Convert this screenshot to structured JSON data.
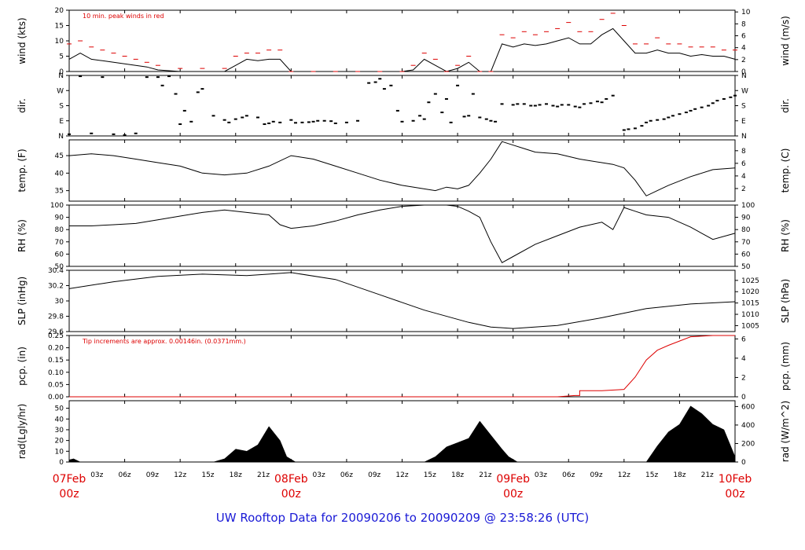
{
  "footer_title": "UW Rooftop Data for 20090206  to  20090209 @ 23:58:26  (UTC)",
  "colors": {
    "red": "#dd0000",
    "blue": "#1a1ad6",
    "black": "#000000"
  },
  "x_axis": {
    "hour_ticks": [
      "03z",
      "06z",
      "09z",
      "12z",
      "15z",
      "18z",
      "21z"
    ],
    "date_labels": [
      {
        "date": "07Feb",
        "hour": "00z",
        "day_index": 0
      },
      {
        "date": "08Feb",
        "hour": "00z",
        "day_index": 1
      },
      {
        "date": "09Feb",
        "hour": "00z",
        "day_index": 2
      },
      {
        "date": "10Feb",
        "hour": "00z",
        "day_index": 3
      }
    ]
  },
  "chart_data": [
    {
      "id": "wind",
      "type": "line",
      "left_label": "wind (kts)",
      "right_label": "wind (m/s)",
      "ylim": [
        0,
        20
      ],
      "yticks_left": [
        0,
        5,
        10,
        15,
        20
      ],
      "right_ylim": [
        0,
        10.29
      ],
      "yticks_right": [
        0,
        2,
        4,
        6,
        8,
        10
      ],
      "annotation": "10 min. peak winds in red",
      "series": [
        {
          "name": "",
          "color": "#000000",
          "x": [
            0,
            0.05,
            0.1,
            0.15,
            0.2,
            0.25,
            0.3,
            0.35,
            0.4,
            0.5,
            0.6,
            0.7,
            0.75,
            0.8,
            0.85,
            0.9,
            0.95,
            1.0,
            1.1,
            1.2,
            1.3,
            1.4,
            1.5,
            1.55,
            1.6,
            1.65,
            1.7,
            1.75,
            1.8,
            1.85,
            1.9,
            1.95,
            2.0,
            2.05,
            2.1,
            2.15,
            2.2,
            2.25,
            2.3,
            2.35,
            2.4,
            2.45,
            2.5,
            2.55,
            2.6,
            2.65,
            2.7,
            2.75,
            2.8,
            2.85,
            2.9,
            2.95,
            3.0
          ],
          "y": [
            4,
            6,
            4,
            3.5,
            3,
            2.5,
            2,
            1.5,
            0.5,
            0,
            0,
            0,
            2,
            4,
            3.5,
            4,
            4,
            0,
            0,
            0,
            0,
            0,
            0,
            0.5,
            4,
            2,
            0,
            1,
            3,
            0,
            0,
            9,
            8,
            9,
            8.5,
            9,
            10,
            11,
            9,
            9,
            12,
            14,
            10,
            6,
            6,
            7,
            6,
            6,
            5,
            5.5,
            5,
            5,
            4
          ]
        },
        {
          "name": "10 min. peak",
          "color": "#dd0000",
          "x": [
            0,
            0.05,
            0.1,
            0.15,
            0.2,
            0.25,
            0.3,
            0.35,
            0.4,
            0.5,
            0.6,
            0.7,
            0.75,
            0.8,
            0.85,
            0.9,
            0.95,
            1.0,
            1.1,
            1.2,
            1.3,
            1.4,
            1.5,
            1.55,
            1.6,
            1.65,
            1.7,
            1.75,
            1.8,
            1.85,
            1.9,
            1.95,
            2.0,
            2.05,
            2.1,
            2.15,
            2.2,
            2.25,
            2.3,
            2.35,
            2.4,
            2.45,
            2.5,
            2.55,
            2.6,
            2.65,
            2.7,
            2.75,
            2.8,
            2.85,
            2.9,
            2.95,
            3.0
          ],
          "y": [
            9,
            10,
            8,
            7,
            6,
            5,
            4,
            3,
            2,
            1,
            1,
            1,
            5,
            6,
            6,
            7,
            7,
            0,
            0,
            0,
            0,
            0,
            0,
            2,
            6,
            4,
            0,
            2,
            5,
            0,
            0,
            12,
            11,
            13,
            12,
            13,
            14,
            16,
            13,
            13,
            17,
            19,
            15,
            9,
            9,
            11,
            9,
            9,
            8,
            8,
            8,
            7,
            7
          ]
        }
      ]
    },
    {
      "id": "dir",
      "type": "scatter",
      "left_label": "dir.",
      "right_label": "dir.",
      "yticks_left": [
        "N",
        "E",
        "S",
        "W",
        "N"
      ],
      "yticks_right": [
        "N",
        "E",
        "S",
        "W",
        "N"
      ],
      "ylim": [
        0,
        360
      ],
      "series": [
        {
          "name": "",
          "color": "#000000",
          "x": [
            0,
            0.1,
            0.2,
            0.3,
            0.35,
            0.4,
            0.45,
            0.5,
            0.55,
            0.6,
            0.7,
            0.75,
            0.8,
            0.85,
            0.9,
            0.95,
            1.0,
            1.05,
            1.1,
            1.15,
            1.2,
            1.25,
            1.3,
            1.35,
            1.4,
            1.45,
            1.5,
            1.55,
            1.6,
            1.65,
            1.7,
            1.75,
            1.8,
            1.85,
            1.9,
            1.95,
            2.0,
            2.05,
            2.1,
            2.15,
            2.2,
            2.25,
            2.3,
            2.35,
            2.4,
            2.45,
            2.5,
            2.55,
            2.6,
            2.65,
            2.7,
            2.75,
            2.8,
            2.85,
            2.9,
            2.95,
            3.0
          ],
          "y": [
            10,
            15,
            10,
            15,
            350,
            350,
            355,
            70,
            85,
            280,
            95,
            100,
            120,
            110,
            75,
            80,
            95,
            80,
            85,
            90,
            75,
            80,
            90,
            315,
            340,
            300,
            85,
            90,
            100,
            250,
            220,
            300,
            120,
            110,
            90,
            190,
            185,
            190,
            180,
            190,
            175,
            185,
            170,
            195,
            200,
            240,
            35,
            45,
            80,
            95,
            110,
            130,
            150,
            170,
            195,
            220,
            240
          ]
        },
        {
          "name": "",
          "color": "#000000",
          "x": [
            0.05,
            0.15,
            0.25,
            0.42,
            0.48,
            0.52,
            0.58,
            0.65,
            0.72,
            0.78,
            0.88,
            0.92,
            1.02,
            1.08,
            1.12,
            1.18,
            1.38,
            1.42,
            1.48,
            1.58,
            1.62,
            1.68,
            1.72,
            1.78,
            1.82,
            1.88,
            1.92,
            2.02,
            2.08,
            2.12,
            2.18,
            2.22,
            2.28,
            2.32,
            2.38,
            2.42,
            2.52,
            2.58,
            2.62,
            2.68,
            2.72,
            2.78,
            2.82,
            2.88,
            2.92,
            2.98
          ],
          "y": [
            355,
            350,
            5,
            300,
            250,
            150,
            260,
            120,
            80,
            110,
            70,
            85,
            78,
            82,
            90,
            88,
            320,
            280,
            150,
            120,
            200,
            140,
            80,
            115,
            250,
            100,
            85,
            190,
            180,
            185,
            180,
            185,
            175,
            190,
            205,
            220,
            40,
            60,
            90,
            100,
            120,
            140,
            160,
            180,
            210,
            230
          ]
        }
      ]
    },
    {
      "id": "temp",
      "type": "line",
      "left_label": "temp. (F)",
      "right_label": "temp. (C)",
      "ylim": [
        32,
        49.5
      ],
      "yticks_left": [
        35,
        40,
        45
      ],
      "yticks_right": [
        2,
        4,
        6,
        8
      ],
      "series": [
        {
          "name": "",
          "color": "#000000",
          "x": [
            0,
            0.1,
            0.2,
            0.3,
            0.4,
            0.5,
            0.6,
            0.7,
            0.8,
            0.9,
            1.0,
            1.1,
            1.2,
            1.3,
            1.4,
            1.5,
            1.6,
            1.65,
            1.7,
            1.75,
            1.8,
            1.85,
            1.9,
            1.95,
            2.0,
            2.05,
            2.1,
            2.2,
            2.3,
            2.4,
            2.45,
            2.5,
            2.55,
            2.6,
            2.65,
            2.7,
            2.8,
            2.9,
            3.0
          ],
          "y": [
            45,
            45.5,
            45,
            44,
            43,
            42,
            40,
            39.5,
            40,
            42,
            45,
            44,
            42,
            40,
            38,
            36.5,
            35.5,
            35,
            36,
            35.5,
            36.5,
            40,
            44,
            49,
            48,
            47,
            46,
            45.5,
            44,
            43,
            42.5,
            41.5,
            38,
            33.5,
            35,
            36.5,
            39,
            41,
            41.5
          ]
        }
      ]
    },
    {
      "id": "rh",
      "type": "line",
      "left_label": "RH (%)",
      "right_label": "RH (%)",
      "ylim": [
        50,
        100
      ],
      "yticks_left": [
        50,
        60,
        70,
        80,
        90,
        100
      ],
      "yticks_right": [
        50,
        60,
        70,
        80,
        90,
        100
      ],
      "series": [
        {
          "name": "",
          "color": "#000000",
          "x": [
            0,
            0.1,
            0.2,
            0.3,
            0.4,
            0.5,
            0.6,
            0.7,
            0.8,
            0.9,
            0.95,
            1.0,
            1.1,
            1.2,
            1.3,
            1.4,
            1.5,
            1.6,
            1.7,
            1.75,
            1.8,
            1.85,
            1.9,
            1.95,
            2.0,
            2.1,
            2.2,
            2.3,
            2.4,
            2.45,
            2.5,
            2.55,
            2.6,
            2.7,
            2.8,
            2.9,
            3.0
          ],
          "y": [
            83,
            83,
            84,
            85,
            88,
            91,
            94,
            96,
            94,
            92,
            84,
            81,
            83,
            87,
            92,
            96,
            99,
            100,
            100,
            99,
            95,
            90,
            70,
            53,
            58,
            68,
            75,
            82,
            86,
            80,
            98,
            95,
            92,
            90,
            82,
            72,
            77
          ]
        }
      ]
    },
    {
      "id": "slp",
      "type": "line",
      "left_label": "SLP (inHg)",
      "right_label": "SLP (hPa)",
      "ylim": [
        29.6,
        30.4
      ],
      "yticks_left": [
        29.6,
        29.8,
        30.0,
        30.2,
        30.4
      ],
      "yticks_right": [
        1005,
        1010,
        1015,
        1020,
        1025
      ],
      "series": [
        {
          "name": "",
          "color": "#000000",
          "x": [
            0,
            0.2,
            0.4,
            0.6,
            0.8,
            0.9,
            1.0,
            1.2,
            1.4,
            1.6,
            1.8,
            1.9,
            2.0,
            2.2,
            2.4,
            2.6,
            2.8,
            3.0
          ],
          "y": [
            30.16,
            30.25,
            30.32,
            30.35,
            30.33,
            30.35,
            30.37,
            30.28,
            30.08,
            29.88,
            29.72,
            29.66,
            29.64,
            29.68,
            29.78,
            29.9,
            29.96,
            29.99
          ]
        }
      ]
    },
    {
      "id": "pcp",
      "type": "line",
      "left_label": "pcp. (in)",
      "right_label": "pcp. (mm)",
      "ylim": [
        0,
        0.25
      ],
      "yticks_left": [
        "0.00",
        "0.05",
        "0.10",
        "0.15",
        "0.20",
        "0.25"
      ],
      "yticks_right": [
        0,
        2,
        4,
        6
      ],
      "annotation": "Tip increments are approx. 0.00146in. (0.0371mm.)",
      "series": [
        {
          "name": "",
          "color": "#dd0000",
          "x": [
            0,
            2.2,
            2.28,
            2.3,
            2.3,
            2.4,
            2.5,
            2.55,
            2.6,
            2.65,
            2.7,
            2.8,
            2.9,
            3.0
          ],
          "y": [
            0,
            0,
            0.005,
            0.005,
            0.025,
            0.025,
            0.03,
            0.08,
            0.15,
            0.19,
            0.21,
            0.245,
            0.25,
            0.25
          ]
        }
      ]
    },
    {
      "id": "rad",
      "type": "area",
      "left_label": "rad(Lgly/hr)",
      "right_label": "rad (W/m^2)",
      "ylim": [
        0,
        57
      ],
      "yticks_left": [
        0,
        10,
        20,
        30,
        40,
        50
      ],
      "yticks_right": [
        0,
        200,
        400,
        600
      ],
      "series": [
        {
          "name": "",
          "color": "#000000",
          "x": [
            0,
            0.02,
            0.05,
            0.65,
            0.7,
            0.75,
            0.8,
            0.85,
            0.9,
            0.95,
            0.98,
            1.02,
            1.05,
            1.6,
            1.65,
            1.7,
            1.75,
            1.8,
            1.85,
            1.9,
            1.95,
            1.98,
            2.02,
            2.05,
            2.6,
            2.65,
            2.7,
            2.75,
            2.8,
            2.85,
            2.9,
            2.95,
            2.98,
            3.0
          ],
          "y": [
            2,
            3,
            0,
            0,
            3,
            12,
            10,
            16,
            33,
            20,
            5,
            0,
            0,
            0,
            5,
            14,
            18,
            22,
            38,
            25,
            12,
            5,
            0,
            0,
            0,
            15,
            28,
            35,
            52,
            45,
            35,
            30,
            15,
            5
          ]
        }
      ]
    }
  ]
}
